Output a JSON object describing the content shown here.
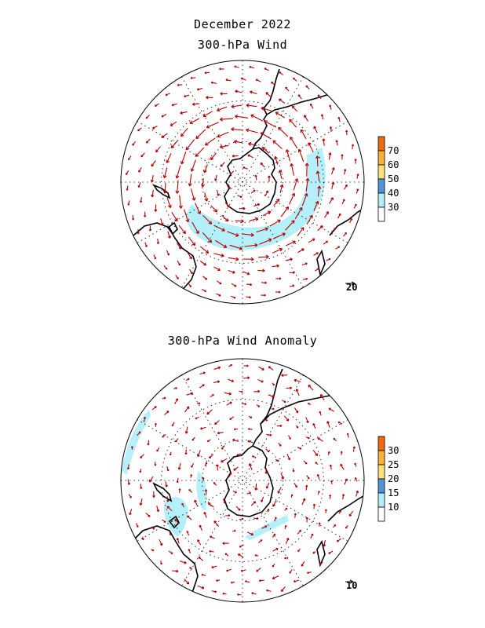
{
  "header": {
    "month_title": "December 2022"
  },
  "panels": [
    {
      "title": "300-hPa Wind",
      "colorbar": {
        "ticks": [
          "30",
          "40",
          "50",
          "60",
          "70"
        ],
        "colors": [
          "#ffffff",
          "#b4f0fa",
          "#4f95d8",
          "#ffe27a",
          "#f9b13a",
          "#f06a0a"
        ]
      },
      "reference_vector": "20",
      "shading_color": "#b4f0fa",
      "arrow_color": "#b40000",
      "flow": "strong cyclonic polar jet"
    },
    {
      "title": "300-hPa Wind Anomaly",
      "colorbar": {
        "ticks": [
          "10",
          "15",
          "20",
          "25",
          "30"
        ],
        "colors": [
          "#ffffff",
          "#b4f0fa",
          "#4f95d8",
          "#ffe27a",
          "#f9b13a",
          "#f06a0a"
        ]
      },
      "reference_vector": "10",
      "shading_color": "#b4f0fa",
      "arrow_color": "#b40000",
      "flow": "weak mixed anomalies"
    }
  ]
}
